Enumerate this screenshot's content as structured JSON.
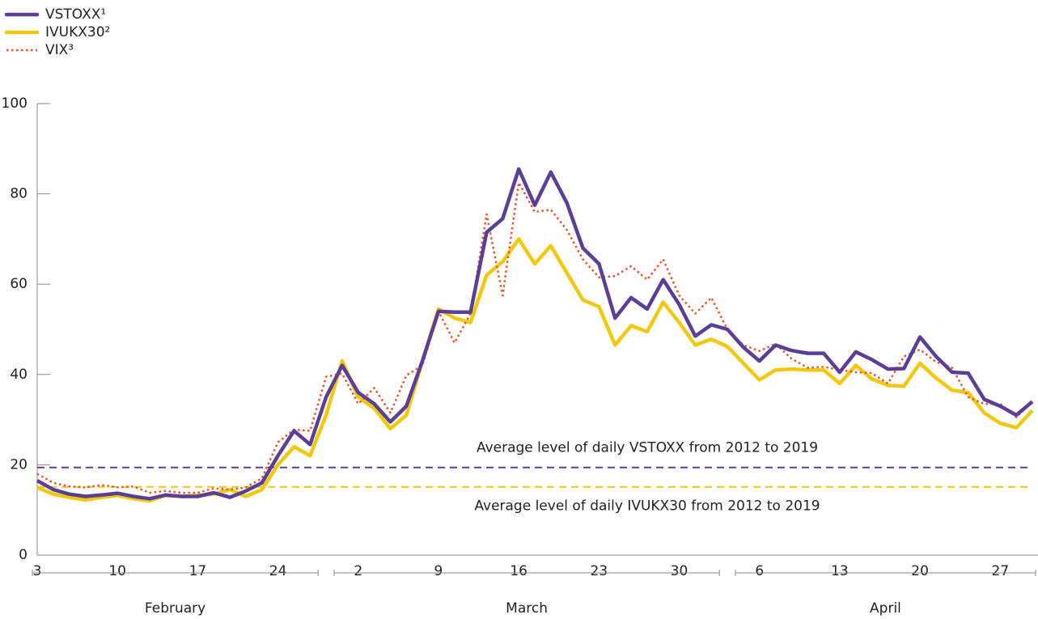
{
  "chart_data": {
    "type": "line",
    "categories": [
      "3",
      null,
      null,
      null,
      null,
      "10",
      null,
      null,
      null,
      null,
      "17",
      null,
      null,
      null,
      null,
      "24",
      null,
      null,
      null,
      null,
      "2",
      null,
      null,
      null,
      null,
      "9",
      null,
      null,
      null,
      null,
      "16",
      null,
      null,
      null,
      null,
      "23",
      null,
      null,
      null,
      null,
      "30",
      null,
      null,
      null,
      null,
      "6",
      null,
      null,
      null,
      null,
      "13",
      null,
      null,
      null,
      null,
      "20",
      null,
      null,
      null,
      null,
      "27",
      null,
      null
    ],
    "x_groups": [
      "February",
      "March",
      "April"
    ],
    "series": [
      {
        "name": "VSTOXX¹",
        "color": "#5b3f96",
        "dash": "solid",
        "values": [
          16.5,
          14.5,
          13.5,
          13,
          13.3,
          13.7,
          13,
          12.5,
          13.3,
          13,
          13,
          13.8,
          12.8,
          14.2,
          16,
          22,
          27.5,
          24.5,
          35,
          42,
          36,
          33.5,
          29.5,
          33,
          43,
          54,
          53.8,
          53.8,
          71.5,
          74.5,
          85.5,
          77.5,
          84.8,
          78,
          68,
          64.5,
          52.5,
          57,
          54.5,
          61,
          55.5,
          48.5,
          51,
          50,
          46,
          43,
          46.5,
          45.3,
          44.7,
          44.7,
          40.5,
          45,
          43.3,
          41.2,
          41.3,
          48.3,
          44,
          40.5,
          40.3,
          34.5,
          33,
          31,
          34
        ]
      },
      {
        "name": "IVUKX30²",
        "color": "#f2c80f",
        "dash": "solid",
        "values": [
          15,
          13.5,
          12.8,
          12.2,
          12.8,
          13.2,
          12.5,
          12,
          13.2,
          13,
          13.2,
          13.5,
          14.5,
          13,
          14.5,
          20,
          24,
          22,
          31,
          43,
          35,
          32.5,
          28,
          31,
          43,
          54.5,
          52.5,
          51.5,
          62,
          65,
          70,
          64.5,
          68.5,
          62.5,
          56.5,
          55,
          46.5,
          50.8,
          49.5,
          56,
          51.5,
          46.5,
          47.8,
          46.2,
          42.5,
          38.8,
          41,
          41.2,
          41,
          41,
          38,
          42,
          39,
          37.6,
          37.4,
          42.5,
          39.2,
          36.5,
          36,
          31.5,
          29.2,
          28.2,
          32
        ]
      },
      {
        "name": "VIX³",
        "color": "#e8532a",
        "dash": "dotted",
        "values": [
          18,
          16,
          15.2,
          15,
          15.5,
          15,
          15.2,
          13.8,
          14.2,
          13.8,
          13.8,
          14.8,
          14.5,
          15,
          17,
          25,
          27.8,
          27.5,
          39.5,
          40.2,
          33.5,
          37,
          31.5,
          39.8,
          42,
          54,
          47,
          53.5,
          75.5,
          57.5,
          82.5,
          76,
          76.5,
          72,
          65.5,
          61.5,
          61.8,
          64,
          61,
          65.5,
          57.5,
          53.5,
          57,
          50,
          46.5,
          45.2,
          46.8,
          43.5,
          41.5,
          41.7,
          41,
          40.5,
          40.3,
          38,
          44,
          45.5,
          42.8,
          41.5,
          35,
          33.5,
          33.5,
          30.5,
          34
        ]
      }
    ],
    "reference_lines": [
      {
        "label": "Average level of daily VSTOXX from 2012 to 2019",
        "value": 19.4,
        "color": "#5b3f96"
      },
      {
        "label": "Average level of daily IVUKX30 from 2012 to 2019",
        "value": 15.1,
        "color": "#f2c80f"
      }
    ],
    "ylim": [
      0,
      100
    ],
    "yticks": [
      0,
      20,
      40,
      60,
      80,
      100
    ],
    "grid": false,
    "legend": "top-left"
  }
}
